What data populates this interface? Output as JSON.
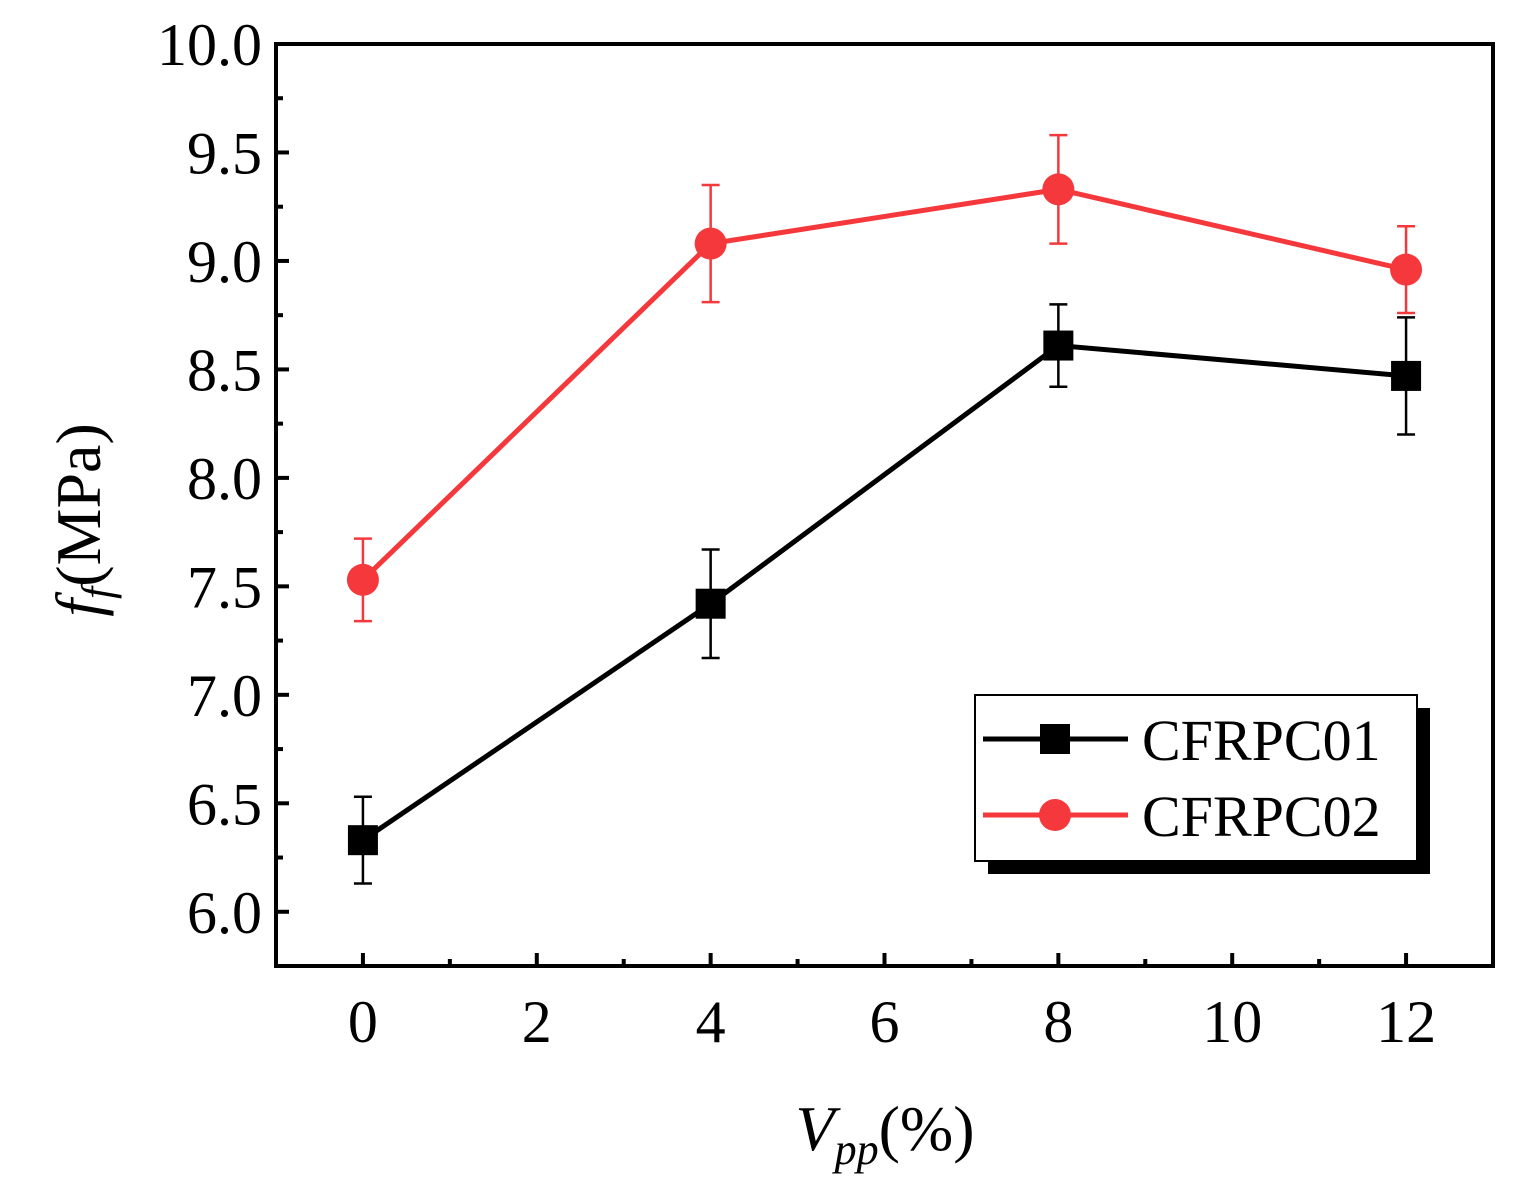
{
  "chart_data": {
    "type": "line",
    "x_axis": {
      "label_main": "V",
      "label_sub": "pp",
      "label_unit": "(%)",
      "range": [
        -1,
        13
      ],
      "major_ticks": [
        0,
        2,
        4,
        6,
        8,
        10,
        12
      ],
      "tick_labels": [
        "0",
        "2",
        "4",
        "6",
        "8",
        "10",
        "12"
      ]
    },
    "y_axis": {
      "label_main": "f",
      "label_sub": "f",
      "label_unit": "(MPa)",
      "range": [
        5.75,
        10.0
      ],
      "major_ticks": [
        6.0,
        6.5,
        7.0,
        7.5,
        8.0,
        8.5,
        9.0,
        9.5,
        10.0
      ],
      "tick_labels": [
        "6.0",
        "6.5",
        "7.0",
        "7.5",
        "8.0",
        "8.5",
        "9.0",
        "9.5",
        "10.0"
      ]
    },
    "series": [
      {
        "name": "CFRPC01",
        "color": "#000000",
        "marker": "square",
        "x": [
          0,
          4,
          8,
          12
        ],
        "y": [
          6.33,
          7.42,
          8.61,
          8.47
        ],
        "err": [
          0.2,
          0.25,
          0.19,
          0.27
        ]
      },
      {
        "name": "CFRPC02",
        "color": "#f5383c",
        "marker": "circle",
        "x": [
          0,
          4,
          8,
          12
        ],
        "y": [
          7.53,
          9.08,
          9.33,
          8.96
        ],
        "err": [
          0.19,
          0.27,
          0.25,
          0.2
        ]
      }
    ],
    "legend": {
      "position": "bottom-right",
      "entries": [
        "CFRPC01",
        "CFRPC02"
      ]
    }
  }
}
